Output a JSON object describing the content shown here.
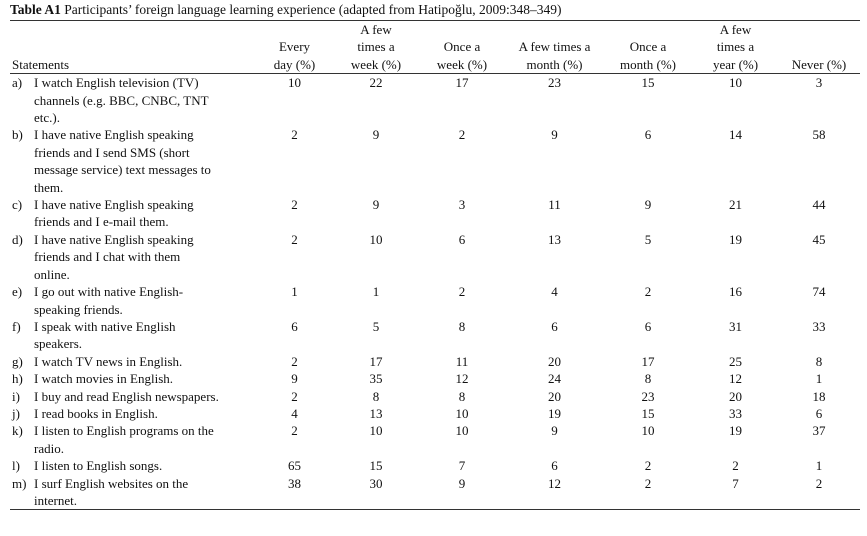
{
  "caption": {
    "label": "Table A1",
    "text": "Participants’ foreign language learning experience (adapted from Hatipoğlu, 2009:348–349)"
  },
  "table": {
    "headers": [
      "Statements",
      "Every day (%)",
      "A few times a week (%)",
      "Once a week (%)",
      "A few times a month (%)",
      "Once a month (%)",
      "A few times a year (%)",
      "Never (%)"
    ],
    "rows": [
      {
        "label": "a)",
        "statement": "I watch English television (TV) channels (e.g. BBC, CNBC, TNT etc.).",
        "values": [
          10,
          22,
          17,
          23,
          15,
          10,
          3
        ]
      },
      {
        "label": "b)",
        "statement": "I have native English speaking friends and I send SMS (short message service) text messages to them.",
        "values": [
          2,
          9,
          2,
          9,
          6,
          14,
          58
        ]
      },
      {
        "label": "c)",
        "statement": "I have native English speaking friends and I e-mail them.",
        "values": [
          2,
          9,
          3,
          11,
          9,
          21,
          44
        ]
      },
      {
        "label": "d)",
        "statement": "I have native English speaking friends and I chat with them online.",
        "values": [
          2,
          10,
          6,
          13,
          5,
          19,
          45
        ]
      },
      {
        "label": "e)",
        "statement": "I go out with native English-speaking friends.",
        "values": [
          1,
          1,
          2,
          4,
          2,
          16,
          74
        ]
      },
      {
        "label": "f)",
        "statement": "I speak with native English speakers.",
        "values": [
          6,
          5,
          8,
          6,
          6,
          31,
          33
        ]
      },
      {
        "label": "g)",
        "statement": "I watch TV news in English.",
        "values": [
          2,
          17,
          11,
          20,
          17,
          25,
          8
        ]
      },
      {
        "label": "h)",
        "statement": "I watch movies in English.",
        "values": [
          9,
          35,
          12,
          24,
          8,
          12,
          1
        ]
      },
      {
        "label": "i)",
        "statement": "I buy and read English newspapers.",
        "values": [
          2,
          8,
          8,
          20,
          23,
          20,
          18
        ]
      },
      {
        "label": "j)",
        "statement": "I read books in English.",
        "values": [
          4,
          13,
          10,
          19,
          15,
          33,
          6
        ]
      },
      {
        "label": "k)",
        "statement": "I listen to English programs on the radio.",
        "values": [
          2,
          10,
          10,
          9,
          10,
          19,
          37
        ]
      },
      {
        "label": "l)",
        "statement": "I listen to English songs.",
        "values": [
          65,
          15,
          7,
          6,
          2,
          2,
          1
        ]
      },
      {
        "label": "m)",
        "statement": "I surf English websites on the internet.",
        "values": [
          38,
          30,
          9,
          12,
          2,
          7,
          2
        ]
      }
    ]
  }
}
